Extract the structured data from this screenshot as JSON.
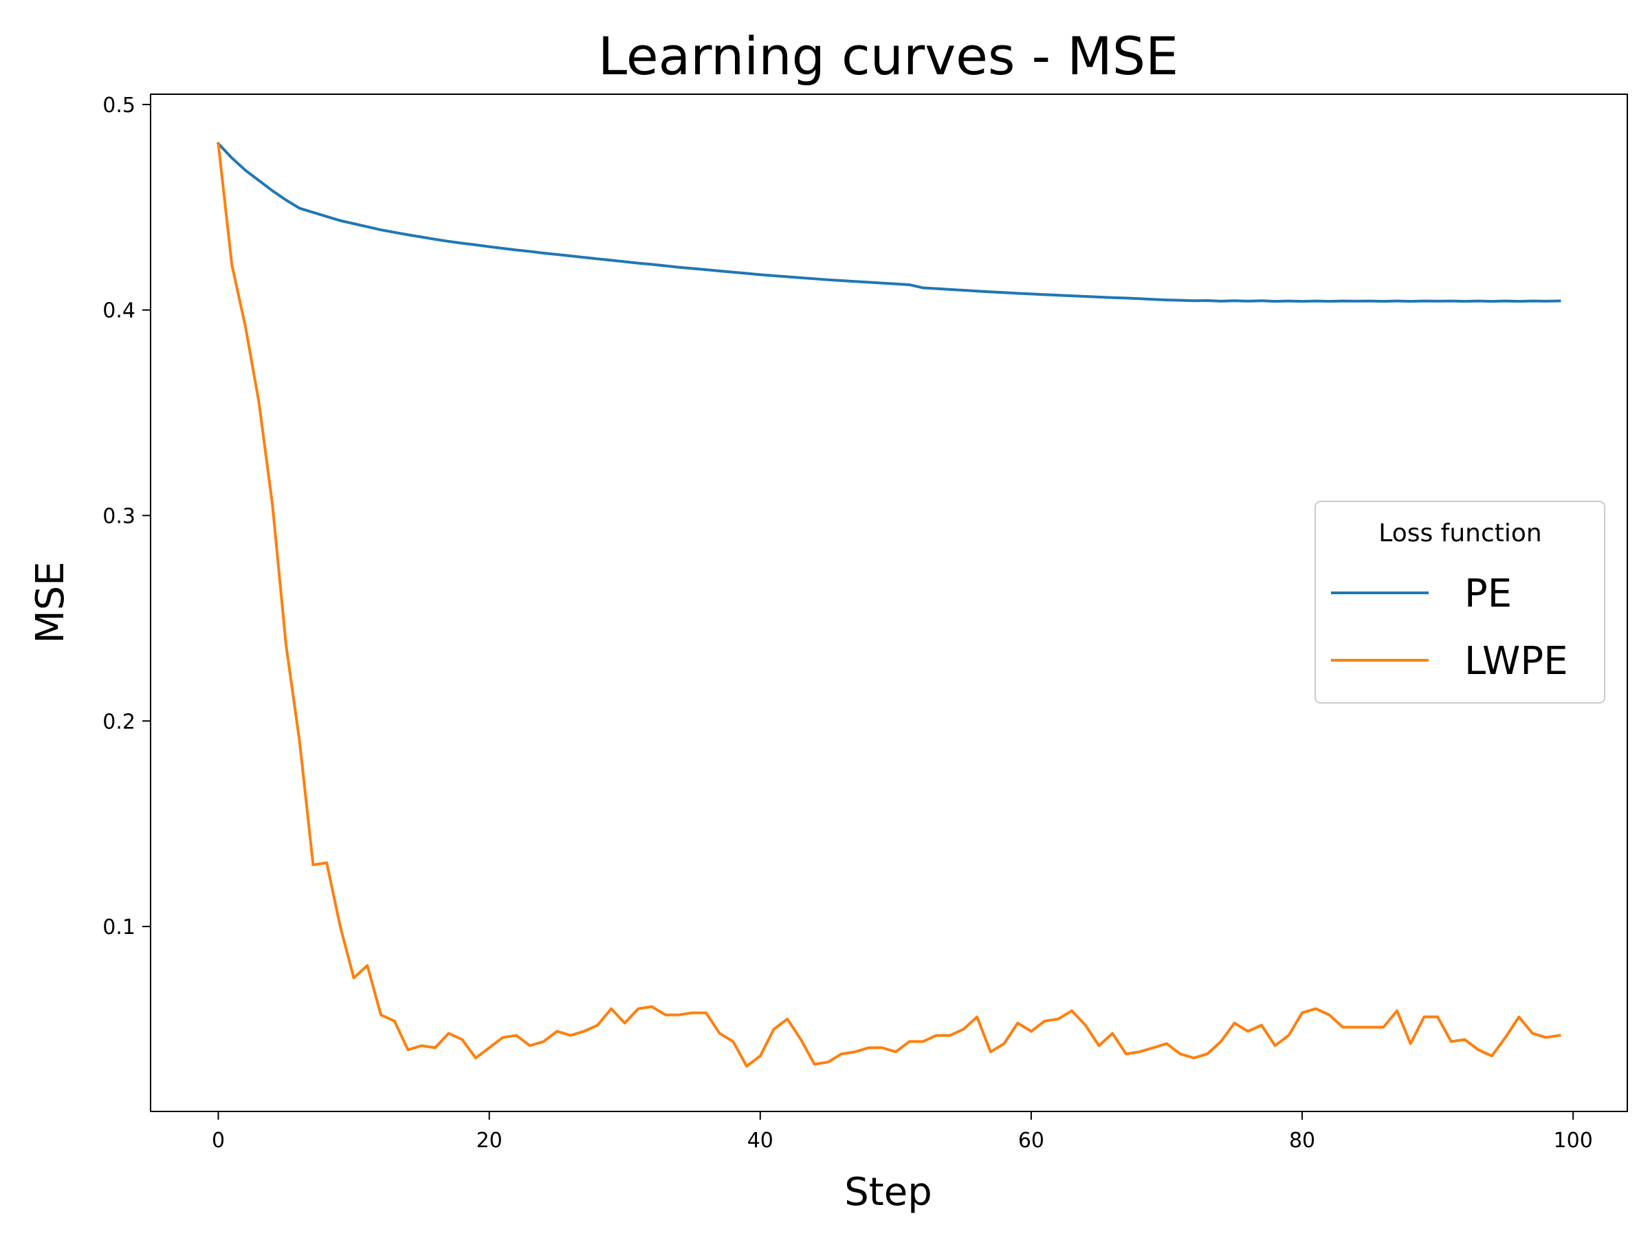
{
  "chart_data": {
    "type": "line",
    "title": "Learning curves - MSE",
    "xlabel": "Step",
    "ylabel": "MSE",
    "xlim": [
      -5,
      104
    ],
    "ylim": [
      0.01,
      0.505
    ],
    "x_ticks": [
      0,
      20,
      40,
      60,
      80,
      100
    ],
    "y_ticks": [
      0.1,
      0.2,
      0.3,
      0.4,
      0.5
    ],
    "grid": false,
    "legend": {
      "title": "Loss function",
      "placement": "center-right"
    },
    "x": [
      0,
      1,
      2,
      3,
      4,
      5,
      6,
      7,
      8,
      9,
      10,
      11,
      12,
      13,
      14,
      15,
      16,
      17,
      18,
      19,
      20,
      21,
      22,
      23,
      24,
      25,
      26,
      27,
      28,
      29,
      30,
      31,
      32,
      33,
      34,
      35,
      36,
      37,
      38,
      39,
      40,
      41,
      42,
      43,
      44,
      45,
      46,
      47,
      48,
      49,
      50,
      51,
      52,
      53,
      54,
      55,
      56,
      57,
      58,
      59,
      60,
      61,
      62,
      63,
      64,
      65,
      66,
      67,
      68,
      69,
      70,
      71,
      72,
      73,
      74,
      75,
      76,
      77,
      78,
      79,
      80,
      81,
      82,
      83,
      84,
      85,
      86,
      87,
      88,
      89,
      90,
      91,
      92,
      93,
      94,
      95,
      96,
      97,
      98,
      99
    ],
    "series": [
      {
        "name": "PE",
        "color": "#1f77b4",
        "values": [
          0.481,
          0.474,
          0.468,
          0.463,
          0.458,
          0.4535,
          0.4495,
          0.4475,
          0.4455,
          0.4435,
          0.442,
          0.4405,
          0.439,
          0.4378,
          0.4366,
          0.4355,
          0.4344,
          0.4334,
          0.4325,
          0.4317,
          0.4308,
          0.43,
          0.4292,
          0.4285,
          0.4277,
          0.427,
          0.4263,
          0.4256,
          0.4249,
          0.4242,
          0.4235,
          0.4228,
          0.4222,
          0.4215,
          0.4208,
          0.4202,
          0.4196,
          0.419,
          0.4184,
          0.4178,
          0.4172,
          0.4167,
          0.4162,
          0.4157,
          0.4152,
          0.4147,
          0.4143,
          0.4139,
          0.4135,
          0.4131,
          0.4127,
          0.4123,
          0.4108,
          0.4104,
          0.41,
          0.4096,
          0.4092,
          0.4088,
          0.4085,
          0.4081,
          0.4078,
          0.4075,
          0.4072,
          0.4069,
          0.4066,
          0.4063,
          0.406,
          0.4058,
          0.4055,
          0.4052,
          0.4049,
          0.4047,
          0.4045,
          0.4046,
          0.4043,
          0.4045,
          0.4043,
          0.4045,
          0.4042,
          0.4044,
          0.4042,
          0.4044,
          0.4042,
          0.4044,
          0.4043,
          0.4044,
          0.4042,
          0.4044,
          0.4042,
          0.4044,
          0.4043,
          0.4044,
          0.4042,
          0.4044,
          0.4042,
          0.4044,
          0.4042,
          0.4044,
          0.4043,
          0.4044
        ]
      },
      {
        "name": "LWPE",
        "color": "#ff7f0e",
        "values": [
          0.481,
          0.422,
          0.392,
          0.355,
          0.305,
          0.237,
          0.19,
          0.13,
          0.131,
          0.1,
          0.075,
          0.081,
          0.057,
          0.054,
          0.04,
          0.042,
          0.041,
          0.048,
          0.045,
          0.036,
          0.041,
          0.046,
          0.047,
          0.042,
          0.044,
          0.049,
          0.047,
          0.049,
          0.052,
          0.06,
          0.053,
          0.06,
          0.061,
          0.057,
          0.057,
          0.058,
          0.058,
          0.048,
          0.044,
          0.032,
          0.037,
          0.05,
          0.055,
          0.045,
          0.033,
          0.034,
          0.038,
          0.039,
          0.041,
          0.041,
          0.039,
          0.044,
          0.044,
          0.047,
          0.047,
          0.05,
          0.056,
          0.039,
          0.043,
          0.053,
          0.049,
          0.054,
          0.055,
          0.059,
          0.052,
          0.042,
          0.048,
          0.038,
          0.039,
          0.041,
          0.043,
          0.038,
          0.036,
          0.038,
          0.044,
          0.053,
          0.049,
          0.052,
          0.042,
          0.047,
          0.058,
          0.06,
          0.057,
          0.051,
          0.051,
          0.051,
          0.051,
          0.059,
          0.043,
          0.056,
          0.056,
          0.044,
          0.045,
          0.04,
          0.037,
          0.046,
          0.056,
          0.048,
          0.046,
          0.047
        ]
      }
    ]
  }
}
